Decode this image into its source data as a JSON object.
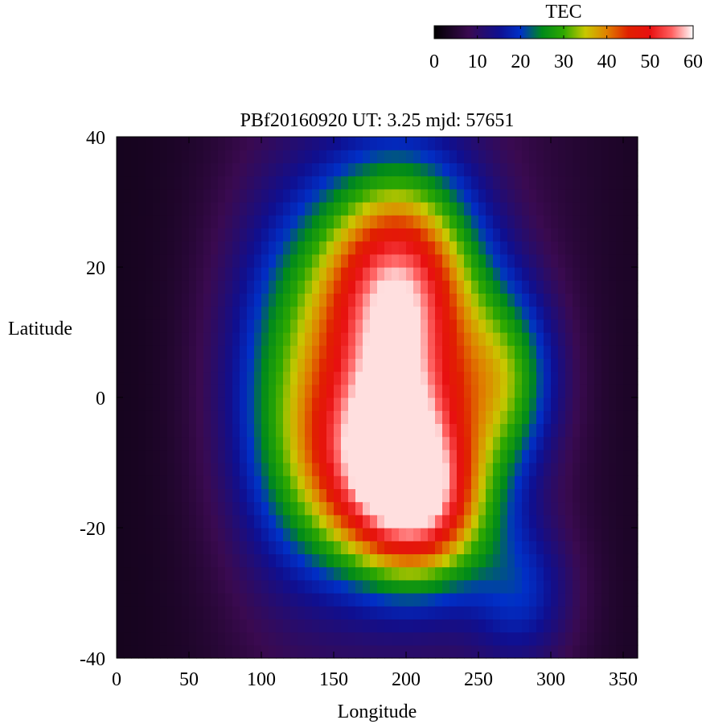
{
  "chart_data": {
    "type": "heatmap",
    "title": "PBf20160920  UT: 3.25  mjd: 57651",
    "xlabel": "Longitude",
    "ylabel": "Latitude",
    "xlim": [
      0,
      360
    ],
    "ylim": [
      -40,
      40
    ],
    "x_ticks": [
      0,
      50,
      100,
      150,
      200,
      250,
      300,
      350
    ],
    "y_ticks": [
      -40,
      -20,
      0,
      20,
      40
    ],
    "colorbar": {
      "label": "TEC",
      "range": [
        0,
        60
      ],
      "ticks": [
        0,
        10,
        20,
        30,
        40,
        50,
        60
      ],
      "colormap": [
        {
          "v": 0,
          "c": "#000000"
        },
        {
          "v": 8,
          "c": "#3a0a50"
        },
        {
          "v": 15,
          "c": "#0f0f90"
        },
        {
          "v": 20,
          "c": "#0030c8"
        },
        {
          "v": 25,
          "c": "#008a1a"
        },
        {
          "v": 30,
          "c": "#2ea800"
        },
        {
          "v": 35,
          "c": "#c8c800"
        },
        {
          "v": 40,
          "c": "#e08000"
        },
        {
          "v": 45,
          "c": "#e02000"
        },
        {
          "v": 50,
          "c": "#e81010"
        },
        {
          "v": 55,
          "c": "#ff6060"
        },
        {
          "v": 60,
          "c": "#ffffff"
        }
      ]
    },
    "grid": false,
    "field_description_units": "TEC",
    "field_model": {
      "background_tec": 2.5,
      "anomaly_blobs": [
        {
          "lon": 195,
          "lat": 16,
          "sig_lon": 38,
          "sig_lat": 13,
          "amp": 48
        },
        {
          "lon": 190,
          "lat": -10,
          "sig_lon": 40,
          "sig_lat": 11,
          "amp": 50
        },
        {
          "lon": 215,
          "lat": -18,
          "sig_lon": 30,
          "sig_lat": 8,
          "amp": 20
        },
        {
          "lon": 270,
          "lat": 3,
          "sig_lon": 25,
          "sig_lat": 10,
          "amp": 20
        },
        {
          "lon": 120,
          "lat": 2,
          "sig_lon": 35,
          "sig_lat": 20,
          "amp": 18
        },
        {
          "lon": 280,
          "lat": -30,
          "sig_lon": 25,
          "sig_lat": 8,
          "amp": 12
        }
      ]
    },
    "cell_size": {
      "dlon": 5,
      "dlat": 2
    }
  }
}
